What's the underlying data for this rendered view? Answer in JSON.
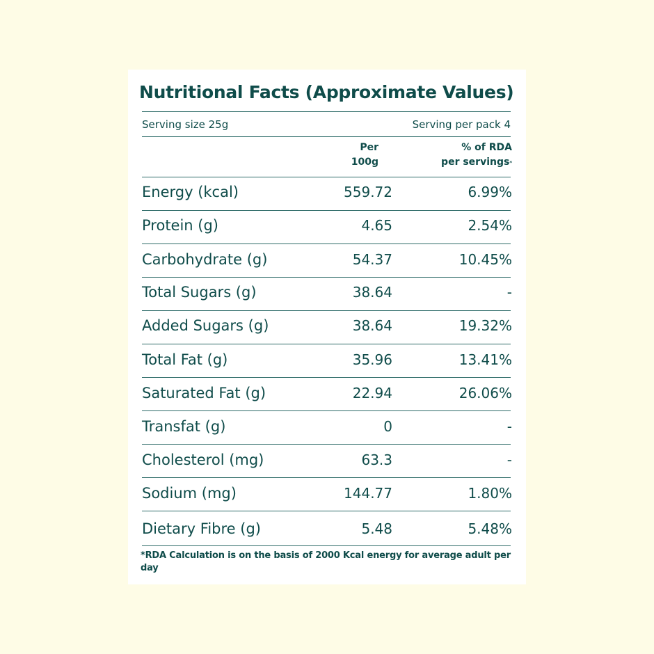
{
  "title": "Nutritional Facts (Approximate Values)",
  "serving_size": "Serving size 25g",
  "servings_per_pack": "Serving per pack 4",
  "columns": {
    "per100_line1": "Per",
    "per100_line2": "100g",
    "rda_line1": "% of RDA",
    "rda_line2": "per servings",
    "rda_mark": "*"
  },
  "rows": [
    {
      "name": "Energy (kcal)",
      "per100": "559.72",
      "rda": "6.99%"
    },
    {
      "name": "Protein (g)",
      "per100": "4.65",
      "rda": "2.54%"
    },
    {
      "name": "Carbohydrate (g)",
      "per100": "54.37",
      "rda": "10.45%"
    },
    {
      "name": "Total Sugars (g)",
      "per100": "38.64",
      "rda": "-"
    },
    {
      "name": "Added Sugars (g)",
      "per100": "38.64",
      "rda": "19.32%"
    },
    {
      "name": "Total Fat (g)",
      "per100": "35.96",
      "rda": "13.41%"
    },
    {
      "name": "Saturated Fat (g)",
      "per100": "22.94",
      "rda": "26.06%"
    },
    {
      "name": "Transfat (g)",
      "per100": "0",
      "rda": "-"
    },
    {
      "name": "Cholesterol (mg)",
      "per100": "63.3",
      "rda": "-"
    },
    {
      "name": "Sodium (mg)",
      "per100": "144.77",
      "rda": "1.80%"
    },
    {
      "name": "Dietary Fibre (g)",
      "per100": "5.48",
      "rda": "5.48%"
    }
  ],
  "footnote": "*RDA Calculation is on the basis of 2000 Kcal energy for average adult per day",
  "colors": {
    "background": "#fefce6",
    "text": "#0f4c4a"
  }
}
